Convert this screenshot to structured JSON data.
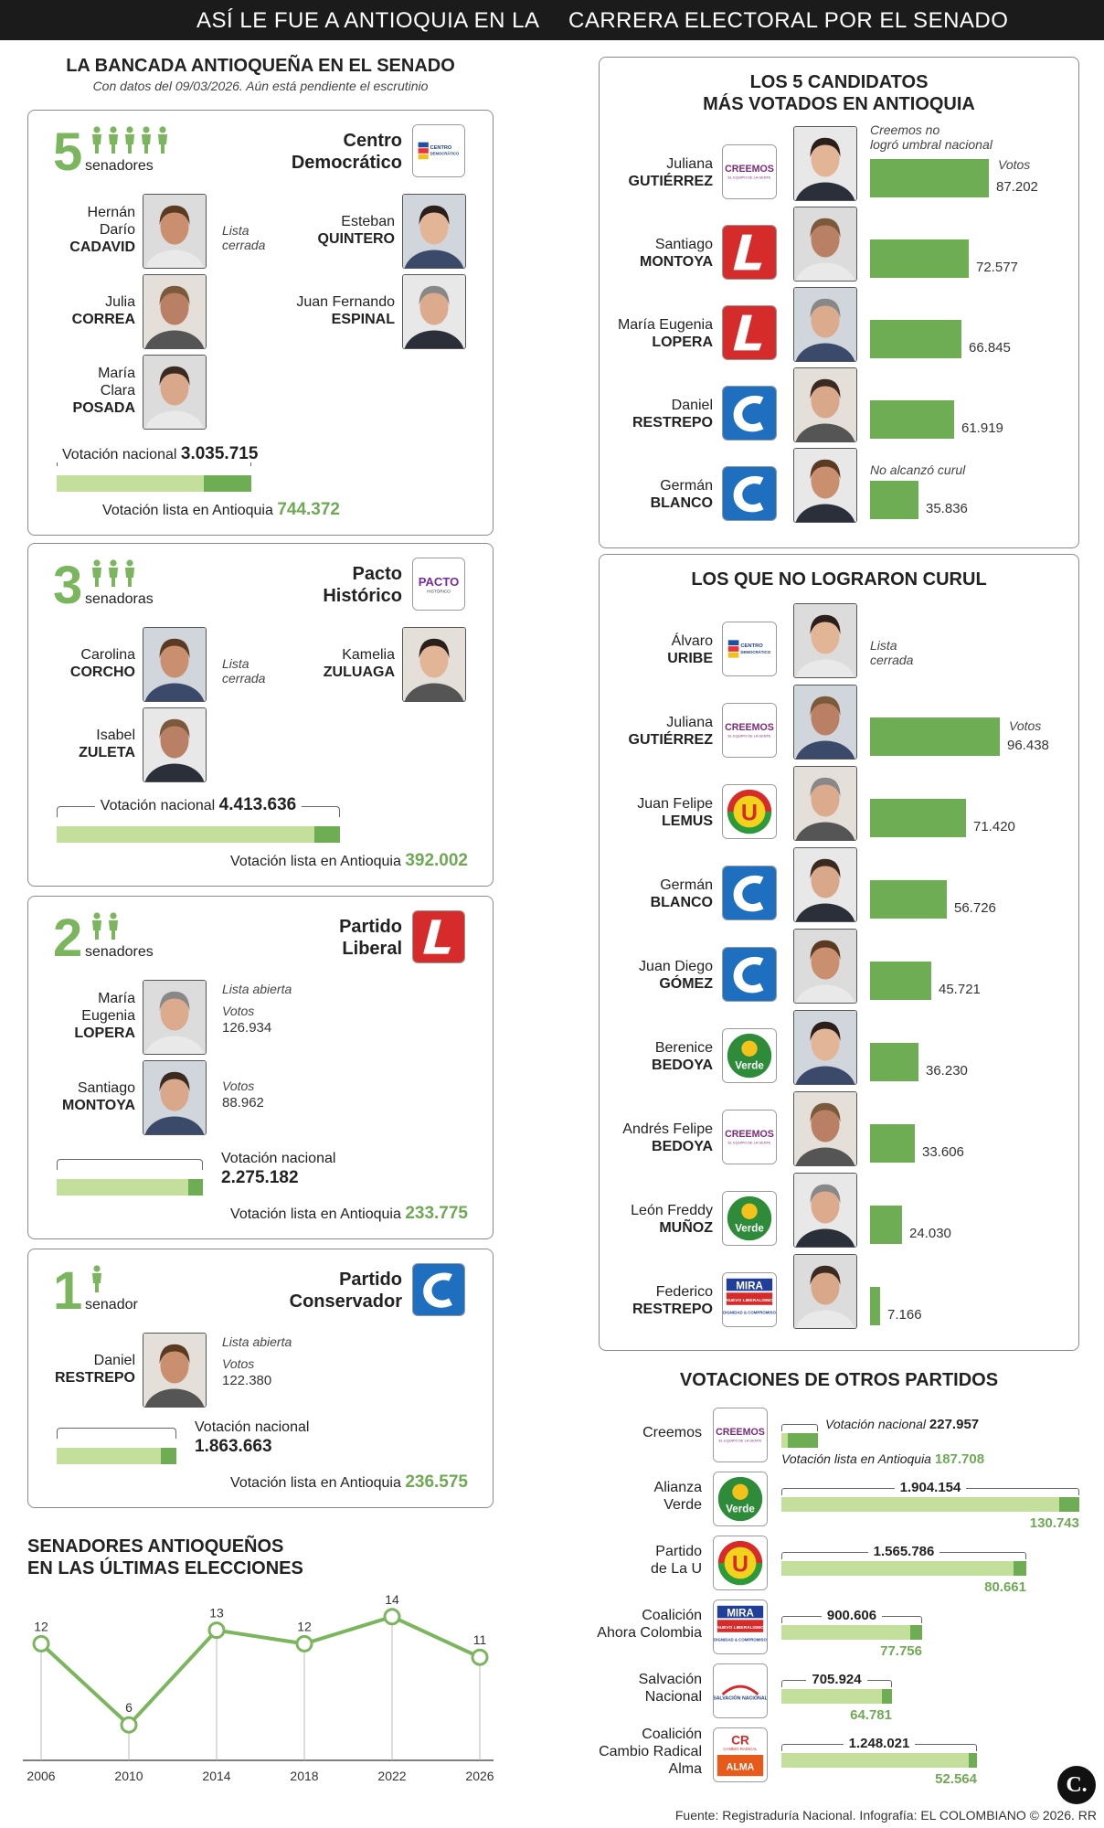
{
  "header": {
    "title_left": "ASÍ LE FUE A ANTIOQUIA EN LA",
    "title_right": "CARRERA ELECTORAL POR EL SENADO"
  },
  "bancada": {
    "title": "LA BANCADA ANTIOQUEÑA EN EL SENADO",
    "subtitle": "Con datos del 09/03/2026. Aún está pendiente el escrutinio",
    "parties": [
      {
        "count": "5",
        "unit": "senadores",
        "name1": "Centro",
        "name2": "Democrático",
        "icons": 5,
        "senators": [
          {
            "first": "Hernán",
            "first2": "Darío",
            "last": "CADAVID",
            "note1": "Lista",
            "note2": "cerrada"
          },
          {
            "first": "Esteban",
            "last": "QUINTERO"
          },
          {
            "first": "Julia",
            "last": "CORREA"
          },
          {
            "first": "Juan Fernando",
            "last": "ESPINAL"
          },
          {
            "first": "María",
            "first2": "Clara",
            "last": "POSADA"
          }
        ],
        "national_label": "Votación nacional",
        "national": "3.035.715",
        "antioquia_label": "Votación lista en Antioquia",
        "antioquia": "744.372",
        "national_value": 3035715,
        "antioquia_value": 744372
      },
      {
        "count": "3",
        "unit": "senadoras",
        "name1": "Pacto",
        "name2": "Histórico",
        "icons": 3,
        "senators": [
          {
            "first": "Carolina",
            "last": "CORCHO",
            "note1": "Lista",
            "note2": "cerrada"
          },
          {
            "first": "Kamelia",
            "last": "ZULUAGA"
          },
          {
            "first": "Isabel",
            "last": "ZULETA"
          }
        ],
        "national_label": "Votación nacional",
        "national": "4.413.636",
        "antioquia_label": "Votación lista en Antioquia",
        "antioquia": "392.002",
        "national_value": 4413636,
        "antioquia_value": 392002
      },
      {
        "count": "2",
        "unit": "senadores",
        "name1": "Partido",
        "name2": "Liberal",
        "icons": 2,
        "senators": [
          {
            "first": "María",
            "first2": "Eugenia",
            "last": "LOPERA",
            "note0": "Lista abierta",
            "note1": "Votos",
            "note2": "126.934"
          },
          {
            "first": "Santiago",
            "last": "MONTOYA",
            "note1": "Votos",
            "note2": "88.962"
          }
        ],
        "national_label": "Votación nacional",
        "national": "2.275.182",
        "antioquia_label": "Votación lista en Antioquia",
        "antioquia": "233.775",
        "national_value": 2275182,
        "antioquia_value": 233775
      },
      {
        "count": "1",
        "unit": "senador",
        "name1": "Partido",
        "name2": "Conservador",
        "icons": 1,
        "senators": [
          {
            "first": "Daniel",
            "last": "RESTREPO",
            "note0": "Lista abierta",
            "note1": "Votos",
            "note2": "122.380"
          }
        ],
        "national_label": "Votación nacional",
        "national": "1.863.663",
        "antioquia_label": "Votación lista en Antioquia",
        "antioquia": "236.575",
        "national_value": 1863663,
        "antioquia_value": 236575
      }
    ]
  },
  "top5": {
    "title1": "LOS 5 CANDIDATOS",
    "title2": "MÁS VOTADOS EN ANTIOQUIA",
    "note_top1": "Creemos no",
    "note_top2": "logró umbral nacional",
    "votes_label": "Votos",
    "note_last": "No alcanzó curul",
    "rows": [
      {
        "first": "Juliana",
        "last": "GUTIÉRREZ",
        "party": "creemos",
        "votes": "87.202",
        "value": 87202
      },
      {
        "first": "Santiago",
        "last": "MONTOYA",
        "party": "liberal",
        "votes": "72.577",
        "value": 72577
      },
      {
        "first": "María Eugenia",
        "last": "LOPERA",
        "party": "liberal",
        "votes": "66.845",
        "value": 66845
      },
      {
        "first": "Daniel",
        "last": "RESTREPO",
        "party": "conservador",
        "votes": "61.919",
        "value": 61919
      },
      {
        "first": "Germán",
        "last": "BLANCO",
        "party": "conservador",
        "votes": "35.836",
        "value": 35836
      }
    ]
  },
  "nocurul": {
    "title": "LOS QUE NO LOGRARON CURUL",
    "note1": "Lista",
    "note2": "cerrada",
    "votes_label": "Votos",
    "rows": [
      {
        "first": "Álvaro",
        "last": "URIBE",
        "party": "cd",
        "votes": "",
        "value": 0
      },
      {
        "first": "Juliana",
        "last": "GUTIÉRREZ",
        "party": "creemos",
        "votes": "96.438",
        "value": 96438
      },
      {
        "first": "Juan Felipe",
        "last": "LEMUS",
        "party": "u",
        "votes": "71.420",
        "value": 71420
      },
      {
        "first": "Germán",
        "last": "BLANCO",
        "party": "conservador",
        "votes": "56.726",
        "value": 56726
      },
      {
        "first": "Juan Diego",
        "last": "GÓMEZ",
        "party": "conservador",
        "votes": "45.721",
        "value": 45721
      },
      {
        "first": "Berenice",
        "last": "BEDOYA",
        "party": "verde",
        "votes": "36.230",
        "value": 36230
      },
      {
        "first": "Andrés Felipe",
        "last": "BEDOYA",
        "party": "creemos",
        "votes": "33.606",
        "value": 33606
      },
      {
        "first": "León Freddy",
        "last": "MUÑOZ",
        "party": "verde",
        "votes": "24.030",
        "value": 24030
      },
      {
        "first": "Federico",
        "last": "RESTREPO",
        "party": "mira",
        "votes": "7.166",
        "value": 7166
      }
    ]
  },
  "otros": {
    "title": "VOTACIONES DE OTROS PARTIDOS",
    "national_label": "Votación nacional",
    "antioquia_label": "Votación lista en Antioquia",
    "rows": [
      {
        "name1": "Creemos",
        "name2": "",
        "party": "creemos",
        "national": "227.957",
        "antioquia": "187.708",
        "national_value": 227957,
        "antioquia_value": 187708
      },
      {
        "name1": "Alianza",
        "name2": "Verde",
        "party": "verde",
        "national": "1.904.154",
        "antioquia": "130.743",
        "national_value": 1904154,
        "antioquia_value": 130743
      },
      {
        "name1": "Partido",
        "name2": "de La U",
        "party": "u",
        "national": "1.565.786",
        "antioquia": "80.661",
        "national_value": 1565786,
        "antioquia_value": 80661
      },
      {
        "name1": "Coalición",
        "name2": "Ahora Colombia",
        "party": "mira",
        "national": "900.606",
        "antioquia": "77.756",
        "national_value": 900606,
        "antioquia_value": 77756
      },
      {
        "name1": "Salvación",
        "name2": "Nacional",
        "party": "salvacion",
        "national": "705.924",
        "antioquia": "64.781",
        "national_value": 705924,
        "antioquia_value": 64781
      },
      {
        "name1": "Coalición",
        "name2": "Cambio Radical",
        "name3": "Alma",
        "party": "cr",
        "national": "1.248.021",
        "antioquia": "52.564",
        "national_value": 1248021,
        "antioquia_value": 52564
      }
    ]
  },
  "chart_data": {
    "type": "line",
    "title": "SENADORES ANTIOQUEÑOS EN LAS ÚLTIMAS ELECCIONES",
    "title1": "SENADORES ANTIOQUEÑOS",
    "title2": "EN LAS ÚLTIMAS ELECCIONES",
    "categories": [
      "2006",
      "2010",
      "2014",
      "2018",
      "2022",
      "2026"
    ],
    "values": [
      12,
      6,
      13,
      12,
      14,
      11
    ],
    "ylim": [
      5,
      15
    ],
    "color": "#7bb55d"
  },
  "footer": {
    "source": "Fuente: Registraduría Nacional. Infografía: EL COLOMBIANO © 2026. RR",
    "brand": "C."
  },
  "logos": {
    "cd": "CENTRO DEMOCRÁTICO",
    "creemos": "CREEMOS",
    "creemos_sub": "EL EQUIPO DE LA GENTE",
    "pacto": "PACTO",
    "pacto_sub": "HISTÓRICO",
    "u": "U",
    "verde": "Verde",
    "mira": "MIRA",
    "mira_sub": "NUEVO LIBERALISMO",
    "mira_sub2": "DIGNIDAD & COMPROMISO",
    "salvacion": "SALVACIÓN NACIONAL",
    "cr": "CR",
    "cr_sub": "CAMBIO RADICAL",
    "alma": "ALMA"
  },
  "colors": {
    "green": "#6fad55",
    "light_green": "#c4df9b",
    "liberal": "#d62b2b",
    "conservador": "#1f6fc0"
  }
}
